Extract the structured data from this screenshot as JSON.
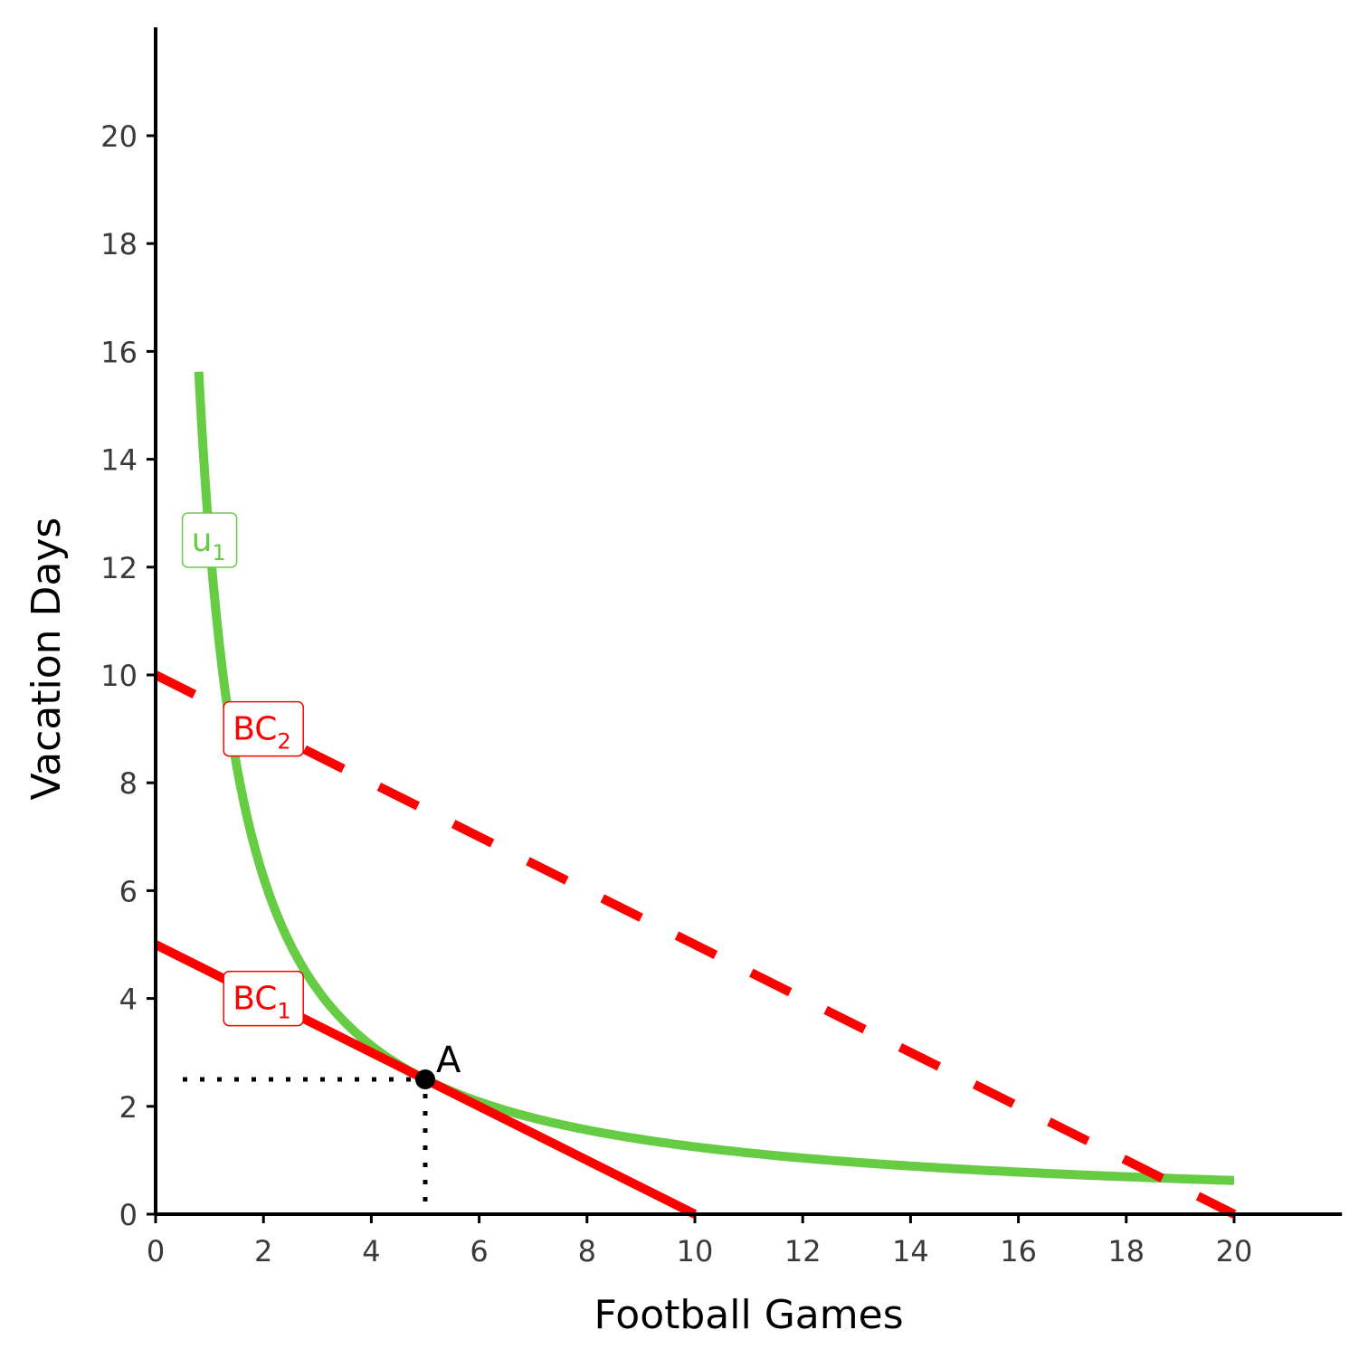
{
  "chart_data": {
    "type": "line",
    "title": "",
    "xlabel": "Football Games",
    "ylabel": "Vacation Days",
    "xlim": [
      0,
      22
    ],
    "ylim": [
      0,
      22
    ],
    "x_ticks": [
      0,
      2,
      4,
      6,
      8,
      10,
      12,
      14,
      16,
      18,
      20
    ],
    "y_ticks": [
      0,
      2,
      4,
      6,
      8,
      10,
      12,
      14,
      16,
      18,
      20
    ],
    "grid": false,
    "legend": "none",
    "series": [
      {
        "name": "u",
        "name_sub": "1",
        "kind": "indifference-curve",
        "color": "#66CC44",
        "style": "solid",
        "x": [
          0.8,
          1.0,
          1.25,
          1.5,
          2,
          2.5,
          3,
          3.5,
          4,
          5,
          6,
          7,
          8,
          9,
          10,
          12,
          14,
          16,
          18,
          20
        ],
        "y": [
          15.63,
          12.5,
          10.0,
          8.33,
          6.25,
          5.0,
          4.17,
          3.57,
          3.13,
          2.5,
          2.08,
          1.79,
          1.56,
          1.39,
          1.25,
          1.04,
          0.89,
          0.78,
          0.69,
          0.63
        ]
      },
      {
        "name": "BC",
        "name_sub": "1",
        "kind": "budget-constraint",
        "color": "#FF0000",
        "style": "solid",
        "x": [
          0,
          10
        ],
        "y": [
          5,
          0
        ]
      },
      {
        "name": "BC",
        "name_sub": "2",
        "kind": "budget-constraint",
        "color": "#FF0000",
        "style": "dashed",
        "x": [
          0,
          20
        ],
        "y": [
          10,
          0
        ]
      }
    ],
    "labels": [
      {
        "text": "u",
        "sub": "1",
        "x": 1.0,
        "y": 12.5,
        "color": "#66CC44"
      },
      {
        "text": "BC",
        "sub": "2",
        "x": 2.0,
        "y": 9.0,
        "color": "#FF0000"
      },
      {
        "text": "BC",
        "sub": "1",
        "x": 2.0,
        "y": 4.0,
        "color": "#FF0000"
      }
    ],
    "points": [
      {
        "label": "A",
        "x": 5,
        "y": 2.5,
        "color": "#000000"
      }
    ],
    "reference_lines": [
      {
        "from": [
          0,
          2.5
        ],
        "to": [
          5,
          2.5
        ],
        "style": "dotted",
        "color": "#000000"
      },
      {
        "from": [
          5,
          0
        ],
        "to": [
          5,
          2.5
        ],
        "style": "dotted",
        "color": "#000000"
      }
    ]
  }
}
